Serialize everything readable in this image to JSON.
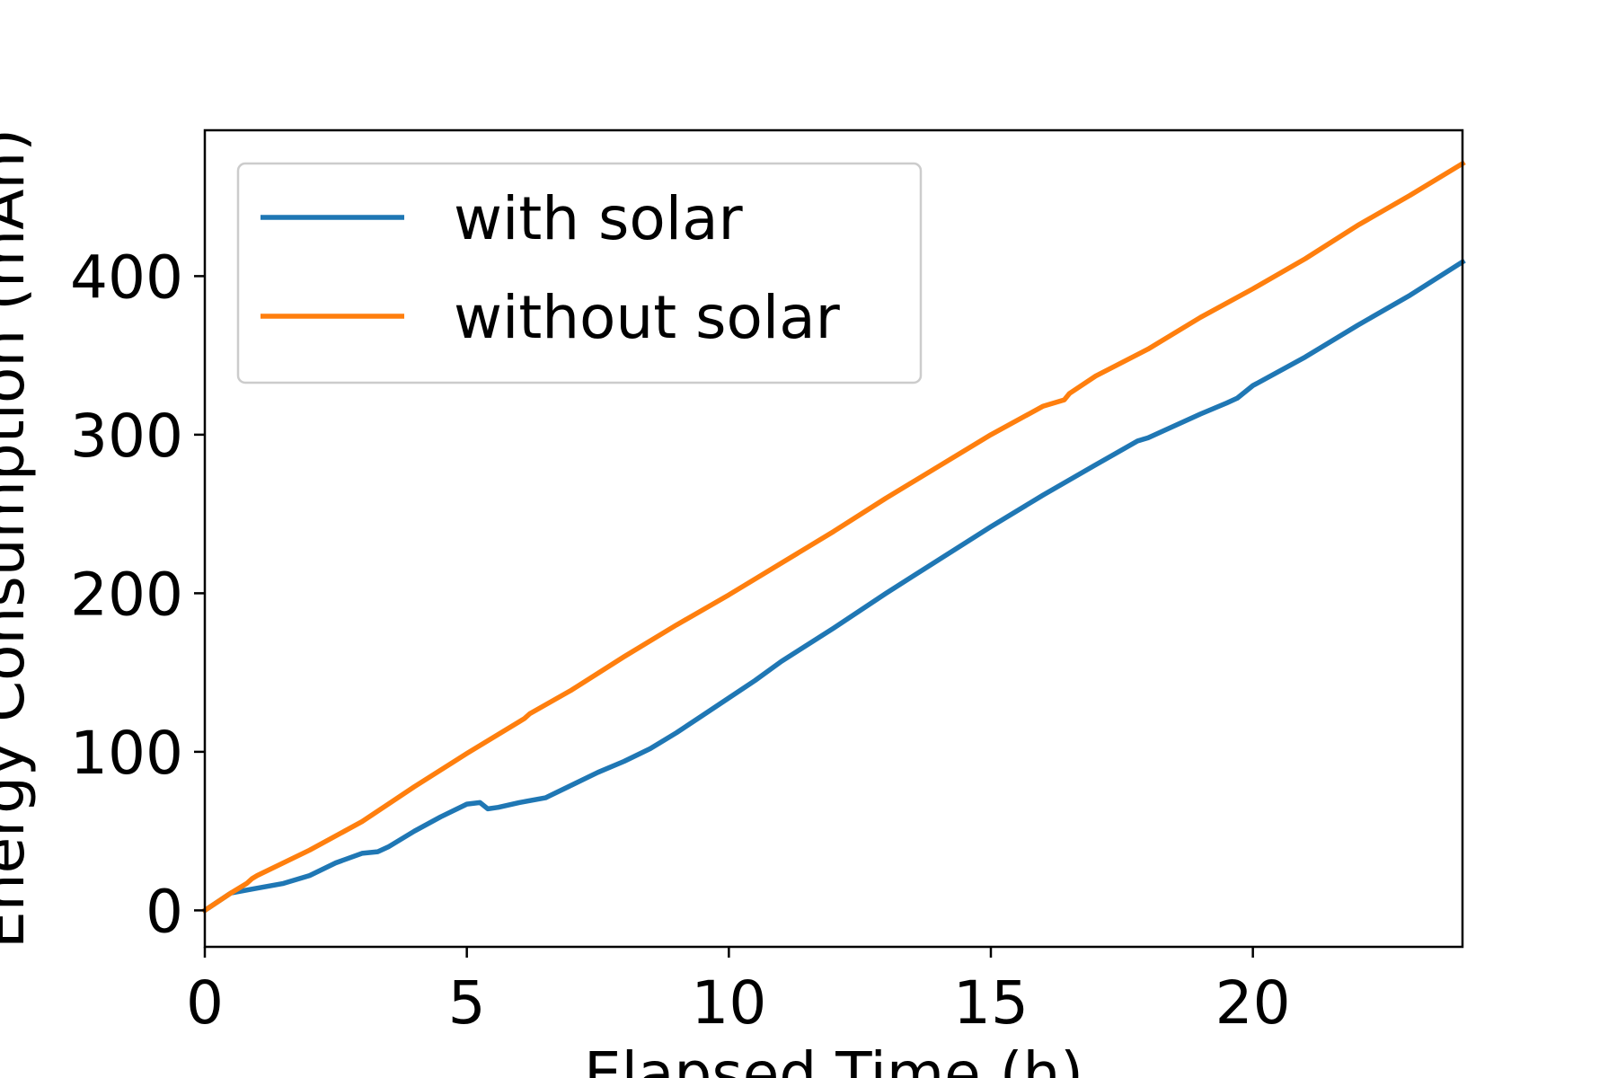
{
  "chart_data": {
    "type": "line",
    "title": "",
    "xlabel": "Elapsed Time (h)",
    "ylabel": "Energy Consumption (mAh)",
    "xlim": [
      0,
      24
    ],
    "ylim": [
      -23,
      492
    ],
    "x_ticks": [
      0,
      5,
      10,
      15,
      20
    ],
    "y_ticks": [
      0,
      100,
      200,
      300,
      400
    ],
    "grid": false,
    "legend_position": "top-left",
    "series": [
      {
        "name": "with solar",
        "color": "#1f77b4",
        "x": [
          0,
          0.5,
          1,
          1.5,
          2,
          2.5,
          3,
          3.3,
          3.5,
          4,
          4.5,
          5,
          5.25,
          5.4,
          5.6,
          6,
          6.5,
          7,
          7.5,
          8,
          8.5,
          9,
          9.5,
          10,
          10.5,
          11,
          12,
          13,
          14,
          15,
          16,
          17,
          17.8,
          18,
          19,
          19.5,
          19.7,
          20,
          21,
          22,
          23,
          24
        ],
        "y": [
          0,
          11,
          14,
          17,
          22,
          30,
          36,
          37,
          40,
          50,
          59,
          67,
          68,
          64,
          65,
          68,
          71,
          79,
          87,
          94,
          102,
          112,
          123,
          134,
          145,
          157,
          178,
          200,
          221,
          242,
          262,
          281,
          296,
          298,
          313,
          320,
          323,
          331,
          349,
          369,
          388,
          409
        ]
      },
      {
        "name": "without solar",
        "color": "#ff7f0e",
        "x": [
          0,
          0.5,
          0.8,
          0.9,
          1,
          2,
          3,
          4,
          5,
          6,
          6.1,
          6.2,
          7,
          8,
          9,
          10,
          11,
          12,
          13,
          14,
          15,
          16,
          16.4,
          16.5,
          17,
          18,
          19,
          20,
          21,
          22,
          23,
          24
        ],
        "y": [
          0,
          11,
          17,
          20,
          22,
          38,
          56,
          78,
          99,
          119,
          121,
          124,
          139,
          160,
          180,
          199,
          219,
          239,
          260,
          280,
          300,
          318,
          322,
          326,
          337,
          354,
          374,
          392,
          411,
          432,
          451,
          471
        ]
      }
    ]
  }
}
